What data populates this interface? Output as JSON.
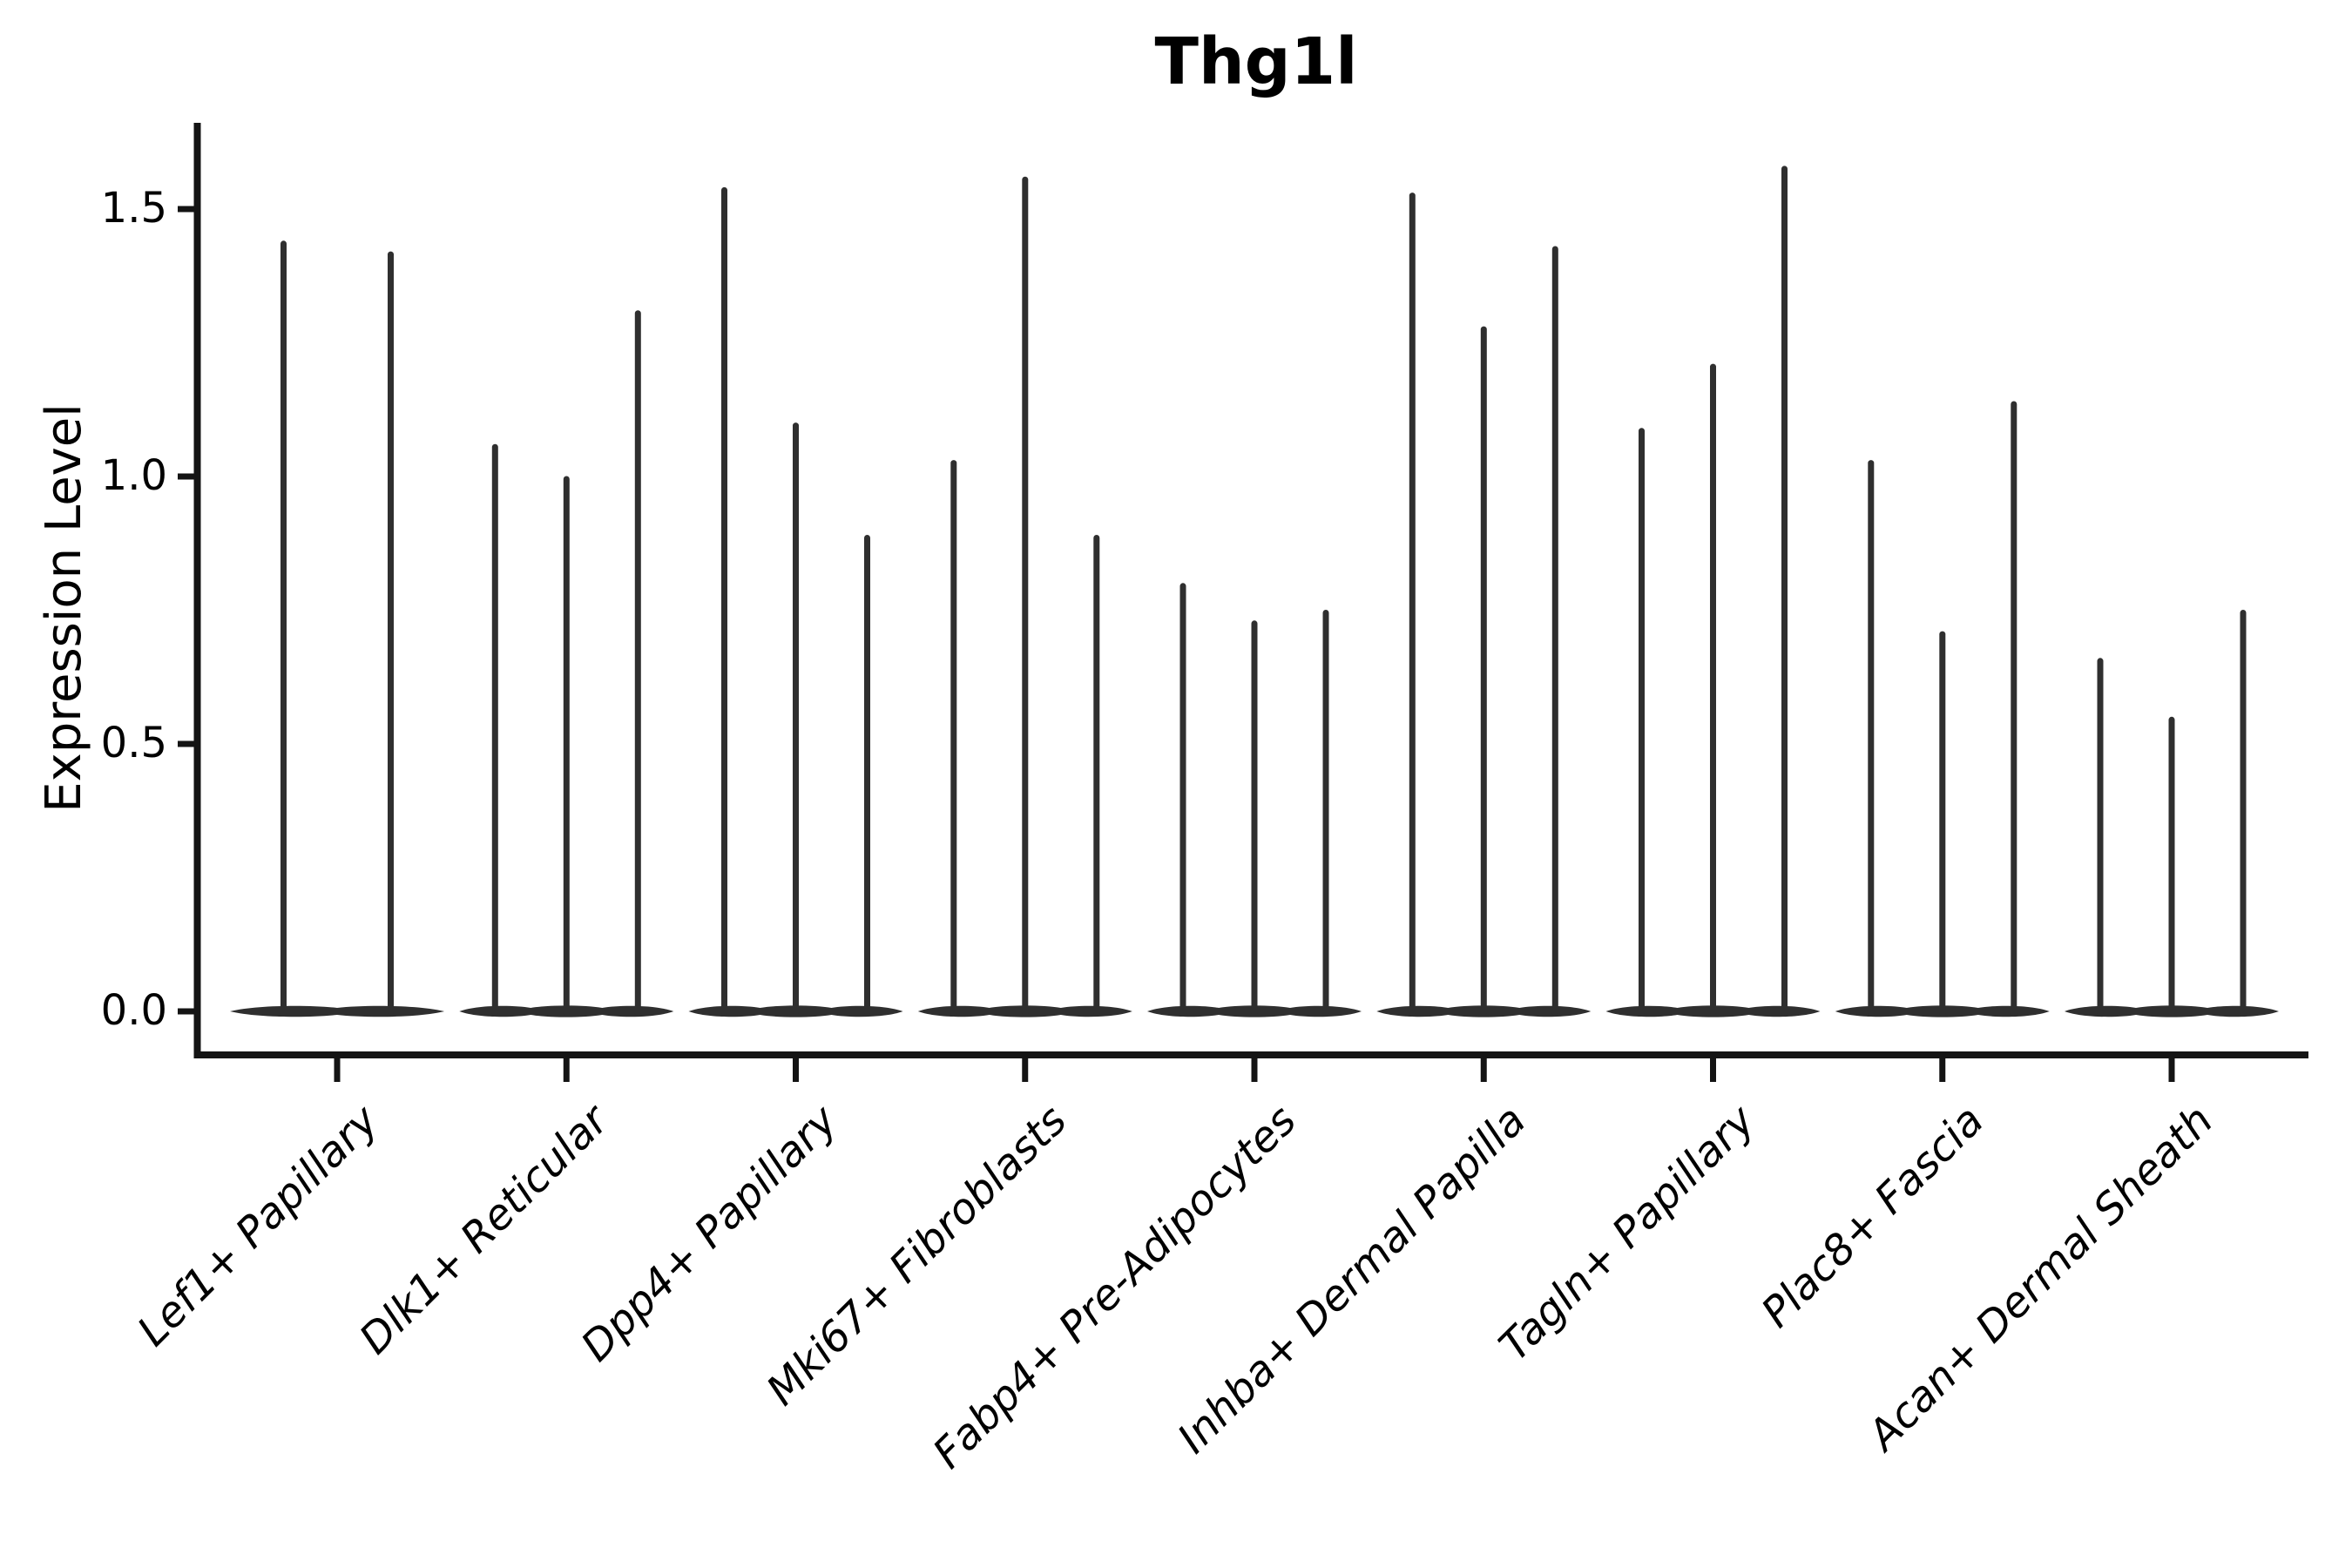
{
  "chart_data": {
    "type": "violin",
    "title": "Thg1l",
    "ylabel": "Expression Level",
    "xlabel": "",
    "ylim": [
      0,
      1.66
    ],
    "ytick_labels": [
      "0.0",
      "0.5",
      "1.0",
      "1.5"
    ],
    "ytick_values": [
      0.0,
      0.5,
      1.0,
      1.5
    ],
    "grid": false,
    "legend": "none",
    "violin_fill": "#2f2f2f",
    "axis_color": "#141414",
    "text_color": "#000000",
    "groups": [
      {
        "category": "Lef1+ Papillary",
        "violin_peaks": [
          1.44,
          1.42
        ]
      },
      {
        "category": "Dlk1+ Reticular",
        "violin_peaks": [
          1.06,
          1.0,
          1.31
        ]
      },
      {
        "category": "Dpp4+ Papillary",
        "violin_peaks": [
          1.54,
          1.1,
          0.89
        ]
      },
      {
        "category": "Mki67+ Fibroblasts",
        "violin_peaks": [
          1.03,
          1.56,
          0.89
        ]
      },
      {
        "category": "Fabp4+ Pre-Adipocytes",
        "violin_peaks": [
          0.8,
          0.73,
          0.75
        ]
      },
      {
        "category": "Inhba+ Dermal Papilla",
        "violin_peaks": [
          1.53,
          1.28,
          1.43
        ]
      },
      {
        "category": "Tagln+ Papillary",
        "violin_peaks": [
          1.09,
          1.21,
          1.58
        ]
      },
      {
        "category": "Plac8+ Fascia",
        "violin_peaks": [
          1.03,
          0.71,
          1.14
        ]
      },
      {
        "category": "Acan+ Dermal Sheath",
        "violin_peaks": [
          0.66,
          0.55,
          0.75
        ]
      }
    ]
  }
}
